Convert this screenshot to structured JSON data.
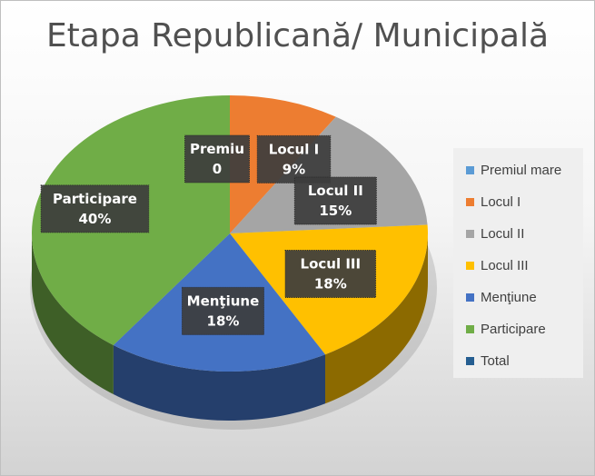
{
  "chart_data": {
    "type": "pie",
    "title": "Etapa Republicană/ Municipală",
    "slices": [
      {
        "name": "Premiul mare",
        "value": 0,
        "label_name": "Premiu",
        "label_value": "0",
        "color": "#5b9bd5"
      },
      {
        "name": "Locul I",
        "value": 9,
        "label_name": "Locul I",
        "label_value": "9%",
        "color": "#ed7d31"
      },
      {
        "name": "Locul II",
        "value": 15,
        "label_name": "Locul II",
        "label_value": "15%",
        "color": "#a5a5a5"
      },
      {
        "name": "Locul III",
        "value": 18,
        "label_name": "Locul III",
        "label_value": "18%",
        "color": "#ffc000"
      },
      {
        "name": "Menţiune",
        "value": 18,
        "label_name": "Menţiune",
        "label_value": "18%",
        "color": "#4472c4"
      },
      {
        "name": "Participare",
        "value": 40,
        "label_name": "Participare",
        "label_value": "40%",
        "color": "#70ad47"
      }
    ],
    "legend": {
      "position": "right",
      "entries": [
        {
          "label": "Premiul mare",
          "color": "#5b9bd5"
        },
        {
          "label": "Locul I",
          "color": "#ed7d31"
        },
        {
          "label": "Locul II",
          "color": "#a5a5a5"
        },
        {
          "label": "Locul III",
          "color": "#ffc000"
        },
        {
          "label": "Menţiune",
          "color": "#4472c4"
        },
        {
          "label": "Participare",
          "color": "#70ad47"
        },
        {
          "label": "Total",
          "color": "#255e91"
        }
      ]
    }
  }
}
